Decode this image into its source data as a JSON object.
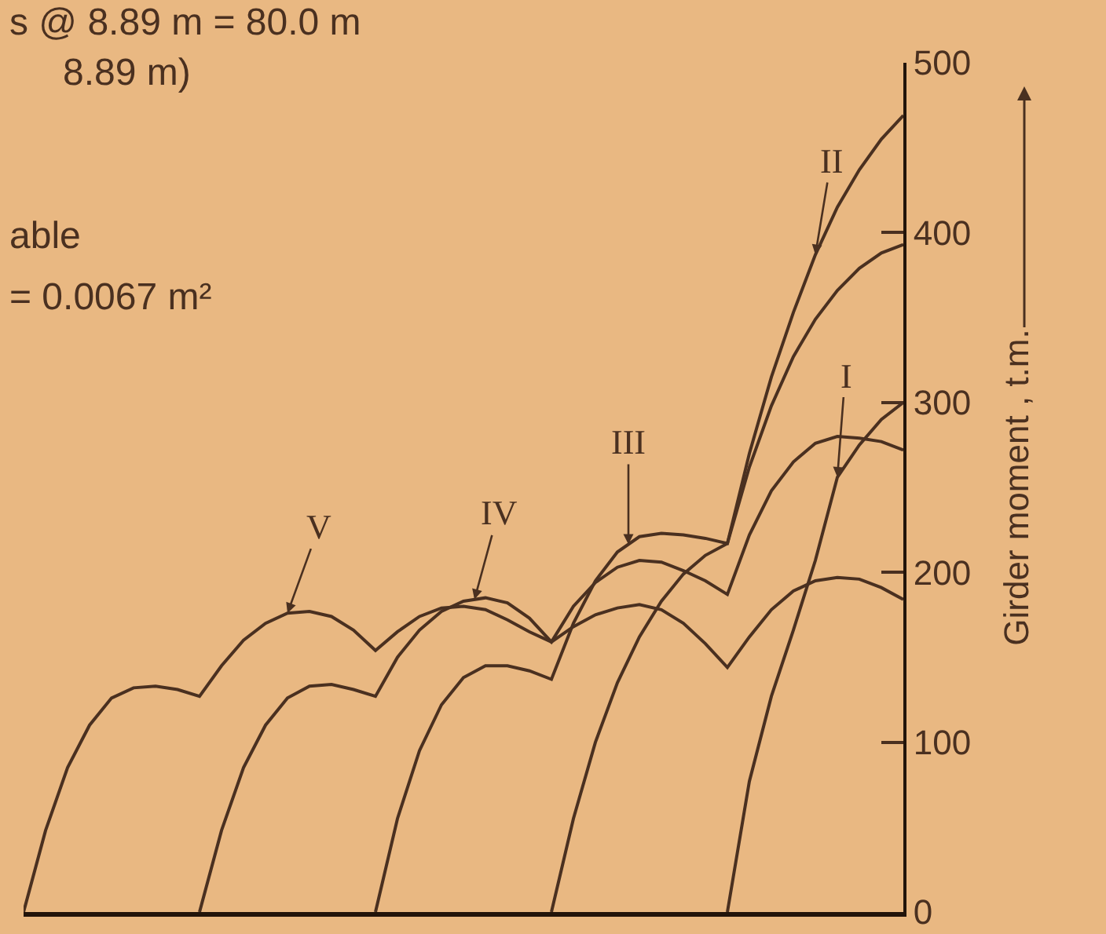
{
  "chart_data": {
    "type": "line",
    "ylabel": "Girder moment , t.m.",
    "annotations": [
      "s @ 8.89 m = 80.0 m",
      "8.89 m)",
      "able",
      "= 0.0067 m²"
    ],
    "categories": [
      null,
      null,
      null,
      null,
      null,
      null,
      null,
      null,
      null,
      null,
      null,
      null,
      null,
      null,
      null,
      null,
      null,
      null,
      null,
      null,
      null,
      null,
      null,
      null,
      null,
      null,
      null,
      null,
      null,
      null,
      null,
      null,
      null,
      null,
      null,
      null,
      null,
      null,
      null,
      null,
      null
    ],
    "series": [
      {
        "name": "I",
        "color": "#4a3020",
        "values": [
          null,
          null,
          null,
          null,
          null,
          null,
          null,
          null,
          null,
          null,
          null,
          null,
          null,
          null,
          null,
          null,
          null,
          null,
          null,
          null,
          null,
          null,
          null,
          null,
          null,
          null,
          null,
          null,
          null,
          null,
          null,
          null,
          0,
          77,
          127,
          166,
          207,
          256,
          275,
          290,
          300
        ]
      },
      {
        "name": "II",
        "color": "#4a3020",
        "values": [
          null,
          null,
          null,
          null,
          null,
          null,
          null,
          null,
          null,
          null,
          null,
          null,
          null,
          null,
          null,
          null,
          null,
          null,
          null,
          null,
          null,
          null,
          null,
          null,
          0,
          55,
          100,
          135,
          162,
          183,
          199,
          210,
          217,
          270,
          315,
          353,
          387,
          415,
          437,
          455,
          469
        ]
      },
      {
        "name": "III",
        "color": "#4a3020",
        "values": [
          null,
          null,
          null,
          null,
          null,
          null,
          null,
          null,
          null,
          null,
          null,
          null,
          null,
          null,
          null,
          null,
          0,
          55,
          95,
          122,
          138,
          145,
          145,
          142,
          137,
          170,
          195,
          212,
          221,
          223,
          222,
          220,
          217,
          262,
          298,
          327,
          349,
          366,
          379,
          388,
          393
        ]
      },
      {
        "name": "IV",
        "color": "#4a3020",
        "values": [
          null,
          null,
          null,
          null,
          null,
          null,
          null,
          null,
          0,
          48,
          85,
          110,
          126,
          133,
          134,
          131,
          127,
          150,
          166,
          177,
          183,
          185,
          182,
          173,
          159,
          180,
          194,
          203,
          207,
          206,
          201,
          195,
          187,
          222,
          248,
          265,
          276,
          280,
          279,
          277,
          272
        ]
      },
      {
        "name": "V",
        "color": "#4a3020",
        "values": [
          0,
          48,
          85,
          110,
          126,
          132,
          133,
          131,
          127,
          145,
          160,
          170,
          176,
          177,
          174,
          166,
          154,
          165,
          174,
          179,
          180,
          178,
          172,
          165,
          159,
          168,
          175,
          179,
          181,
          178,
          170,
          158,
          144,
          162,
          178,
          189,
          195,
          197,
          196,
          191,
          184
        ]
      }
    ],
    "ylim": [
      0,
      500
    ],
    "yticks": [
      0,
      100,
      200,
      300,
      400,
      500
    ],
    "grid": false,
    "legend": false,
    "tick_labels": "y",
    "marker": "none",
    "line_style": "solid"
  }
}
